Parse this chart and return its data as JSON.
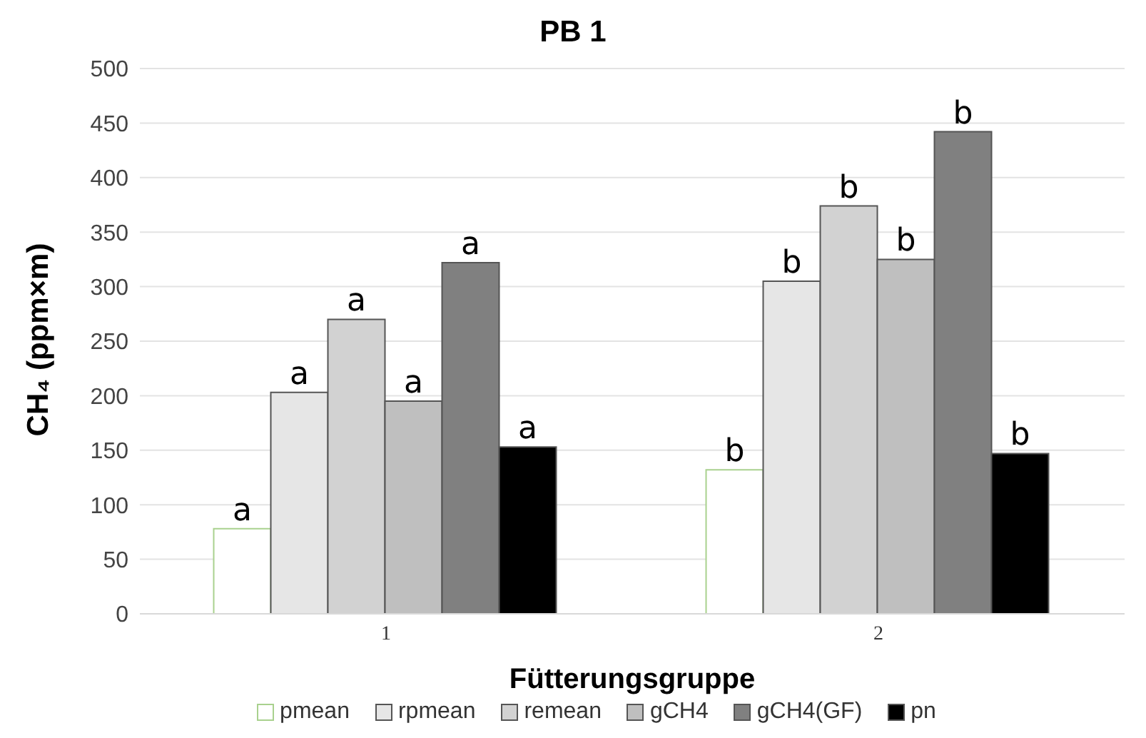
{
  "chart_data": {
    "type": "bar",
    "title": "PB 1",
    "xlabel": "Fütterungsgruppe",
    "ylabel": "CH₄ (ppm×m)",
    "categories": [
      "1",
      "2"
    ],
    "series": [
      {
        "name": "pmean",
        "color": "#ffffff",
        "values": [
          78,
          132
        ],
        "value_labels": [
          "a",
          "b"
        ]
      },
      {
        "name": "rpmean",
        "color": "#e6e6e6",
        "values": [
          203,
          305
        ],
        "value_labels": [
          "a",
          "b"
        ]
      },
      {
        "name": "remean",
        "color": "#d2d2d2",
        "values": [
          270,
          374
        ],
        "value_labels": [
          "a",
          "b"
        ]
      },
      {
        "name": "gCH4",
        "color": "#bfbfbf",
        "values": [
          195,
          325
        ],
        "value_labels": [
          "a",
          "b"
        ]
      },
      {
        "name": "gCH4(GF)",
        "color": "#808080",
        "values": [
          322,
          442
        ],
        "value_labels": [
          "a",
          "b"
        ]
      },
      {
        "name": "pn",
        "color": "#000000",
        "values": [
          153,
          147
        ],
        "value_labels": [
          "a",
          "b"
        ]
      }
    ],
    "ylim": [
      0,
      500
    ],
    "yticks": [
      0,
      50,
      100,
      150,
      200,
      250,
      300,
      350,
      400,
      450,
      500
    ],
    "grid": "y",
    "legend": "bottom"
  }
}
